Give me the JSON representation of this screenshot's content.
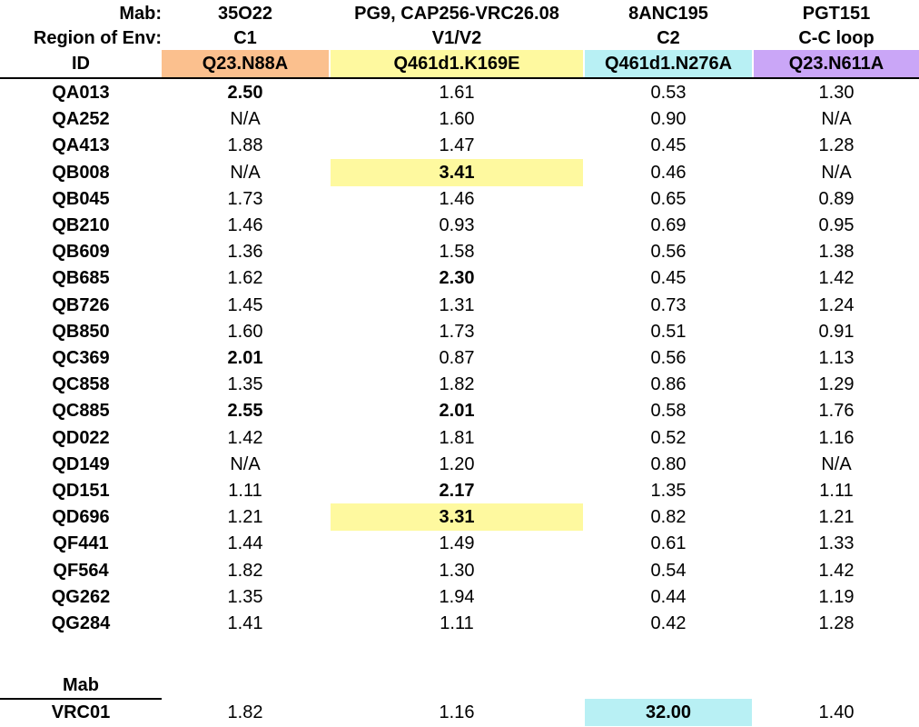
{
  "header": {
    "mab_label": "Mab:",
    "region_label": "Region of Env:",
    "id_label": "ID",
    "columns": [
      {
        "mab": "35O22",
        "region": "C1",
        "mutant": "Q23.N88A",
        "color": "#fbc08e"
      },
      {
        "mab": "PG9, CAP256-VRC26.08",
        "region": "V1/V2",
        "mutant": "Q461d1.K169E",
        "color": "#fef99f"
      },
      {
        "mab": "8ANC195",
        "region": "C2",
        "mutant": "Q461d1.N276A",
        "color": "#b8f0f4"
      },
      {
        "mab": "PGT151",
        "region": "C-C loop",
        "mutant": "Q23.N611A",
        "color": "#caa6f7"
      }
    ]
  },
  "rows": [
    {
      "id": "QA013",
      "values": [
        "2.50",
        "1.61",
        "0.53",
        "1.30"
      ],
      "bold": [
        true,
        false,
        false,
        false
      ],
      "highlight": [
        false,
        false,
        false,
        false
      ]
    },
    {
      "id": "QA252",
      "values": [
        "N/A",
        "1.60",
        "0.90",
        "N/A"
      ],
      "bold": [
        false,
        false,
        false,
        false
      ],
      "highlight": [
        false,
        false,
        false,
        false
      ]
    },
    {
      "id": "QA413",
      "values": [
        "1.88",
        "1.47",
        "0.45",
        "1.28"
      ],
      "bold": [
        false,
        false,
        false,
        false
      ],
      "highlight": [
        false,
        false,
        false,
        false
      ]
    },
    {
      "id": "QB008",
      "values": [
        "N/A",
        "3.41",
        "0.46",
        "N/A"
      ],
      "bold": [
        false,
        true,
        false,
        false
      ],
      "highlight": [
        false,
        true,
        false,
        false
      ]
    },
    {
      "id": "QB045",
      "values": [
        "1.73",
        "1.46",
        "0.65",
        "0.89"
      ],
      "bold": [
        false,
        false,
        false,
        false
      ],
      "highlight": [
        false,
        false,
        false,
        false
      ]
    },
    {
      "id": "QB210",
      "values": [
        "1.46",
        "0.93",
        "0.69",
        "0.95"
      ],
      "bold": [
        false,
        false,
        false,
        false
      ],
      "highlight": [
        false,
        false,
        false,
        false
      ]
    },
    {
      "id": "QB609",
      "values": [
        "1.36",
        "1.58",
        "0.56",
        "1.38"
      ],
      "bold": [
        false,
        false,
        false,
        false
      ],
      "highlight": [
        false,
        false,
        false,
        false
      ]
    },
    {
      "id": "QB685",
      "values": [
        "1.62",
        "2.30",
        "0.45",
        "1.42"
      ],
      "bold": [
        false,
        true,
        false,
        false
      ],
      "highlight": [
        false,
        false,
        false,
        false
      ]
    },
    {
      "id": "QB726",
      "values": [
        "1.45",
        "1.31",
        "0.73",
        "1.24"
      ],
      "bold": [
        false,
        false,
        false,
        false
      ],
      "highlight": [
        false,
        false,
        false,
        false
      ]
    },
    {
      "id": "QB850",
      "values": [
        "1.60",
        "1.73",
        "0.51",
        "0.91"
      ],
      "bold": [
        false,
        false,
        false,
        false
      ],
      "highlight": [
        false,
        false,
        false,
        false
      ]
    },
    {
      "id": "QC369",
      "values": [
        "2.01",
        "0.87",
        "0.56",
        "1.13"
      ],
      "bold": [
        true,
        false,
        false,
        false
      ],
      "highlight": [
        false,
        false,
        false,
        false
      ]
    },
    {
      "id": "QC858",
      "values": [
        "1.35",
        "1.82",
        "0.86",
        "1.29"
      ],
      "bold": [
        false,
        false,
        false,
        false
      ],
      "highlight": [
        false,
        false,
        false,
        false
      ]
    },
    {
      "id": "QC885",
      "values": [
        "2.55",
        "2.01",
        "0.58",
        "1.76"
      ],
      "bold": [
        true,
        true,
        false,
        false
      ],
      "highlight": [
        false,
        false,
        false,
        false
      ]
    },
    {
      "id": "QD022",
      "values": [
        "1.42",
        "1.81",
        "0.52",
        "1.16"
      ],
      "bold": [
        false,
        false,
        false,
        false
      ],
      "highlight": [
        false,
        false,
        false,
        false
      ]
    },
    {
      "id": "QD149",
      "values": [
        "N/A",
        "1.20",
        "0.80",
        "N/A"
      ],
      "bold": [
        false,
        false,
        false,
        false
      ],
      "highlight": [
        false,
        false,
        false,
        false
      ]
    },
    {
      "id": "QD151",
      "values": [
        "1.11",
        "2.17",
        "1.35",
        "1.11"
      ],
      "bold": [
        false,
        true,
        false,
        false
      ],
      "highlight": [
        false,
        false,
        false,
        false
      ]
    },
    {
      "id": "QD696",
      "values": [
        "1.21",
        "3.31",
        "0.82",
        "1.21"
      ],
      "bold": [
        false,
        true,
        false,
        false
      ],
      "highlight": [
        false,
        true,
        false,
        false
      ]
    },
    {
      "id": "QF441",
      "values": [
        "1.44",
        "1.49",
        "0.61",
        "1.33"
      ],
      "bold": [
        false,
        false,
        false,
        false
      ],
      "highlight": [
        false,
        false,
        false,
        false
      ]
    },
    {
      "id": "QF564",
      "values": [
        "1.82",
        "1.30",
        "0.54",
        "1.42"
      ],
      "bold": [
        false,
        false,
        false,
        false
      ],
      "highlight": [
        false,
        false,
        false,
        false
      ]
    },
    {
      "id": "QG262",
      "values": [
        "1.35",
        "1.94",
        "0.44",
        "1.19"
      ],
      "bold": [
        false,
        false,
        false,
        false
      ],
      "highlight": [
        false,
        false,
        false,
        false
      ]
    },
    {
      "id": "QG284",
      "values": [
        "1.41",
        "1.11",
        "0.42",
        "1.28"
      ],
      "bold": [
        false,
        false,
        false,
        false
      ],
      "highlight": [
        false,
        false,
        false,
        false
      ]
    }
  ],
  "control": {
    "label": "Mab",
    "rows": [
      {
        "id": "VRC01",
        "values": [
          "1.82",
          "1.16",
          "32.00",
          "1.40"
        ],
        "bold": [
          false,
          false,
          true,
          false
        ],
        "highlight": [
          false,
          false,
          true,
          false
        ]
      }
    ]
  },
  "highlight_colors": [
    "#fbc08e",
    "#fef99f",
    "#b8f0f4",
    "#caa6f7"
  ]
}
